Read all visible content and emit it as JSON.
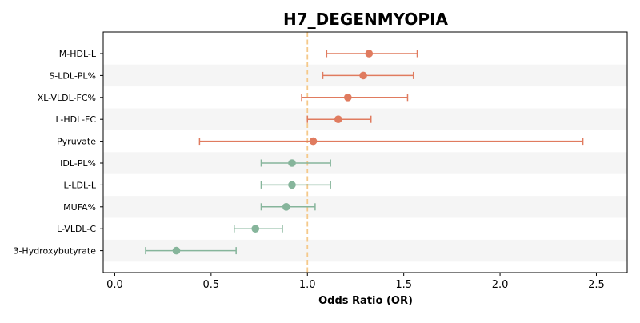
{
  "chart_data": {
    "type": "forest",
    "title": "H7_DEGENMYOPIA",
    "xlabel": "Odds Ratio (OR)",
    "ylabel": "",
    "xlim": [
      -0.06,
      2.66
    ],
    "xticks": [
      0.0,
      0.5,
      1.0,
      1.5,
      2.0,
      2.5
    ],
    "xtick_labels": [
      "0.0",
      "0.5",
      "1.0",
      "1.5",
      "2.0",
      "2.5"
    ],
    "reference_line": 1.0,
    "grid": false,
    "row_striping": true,
    "colors": {
      "positive": "#e07b5f",
      "negative": "#86b59b",
      "reference": "#f5c98a",
      "stripe": "#f5f5f5"
    },
    "rows": [
      {
        "label": "M-HDL-L",
        "or": 1.32,
        "lower": 1.1,
        "upper": 1.57
      },
      {
        "label": "S-LDL-PL%",
        "or": 1.29,
        "lower": 1.08,
        "upper": 1.55
      },
      {
        "label": "XL-VLDL-FC%",
        "or": 1.21,
        "lower": 0.97,
        "upper": 1.52
      },
      {
        "label": "L-HDL-FC",
        "or": 1.16,
        "lower": 1.0,
        "upper": 1.33
      },
      {
        "label": "Pyruvate",
        "or": 1.03,
        "lower": 0.44,
        "upper": 2.43
      },
      {
        "label": "IDL-PL%",
        "or": 0.92,
        "lower": 0.76,
        "upper": 1.12
      },
      {
        "label": "L-LDL-L",
        "or": 0.92,
        "lower": 0.76,
        "upper": 1.12
      },
      {
        "label": "MUFA%",
        "or": 0.89,
        "lower": 0.76,
        "upper": 1.04
      },
      {
        "label": "L-VLDL-C",
        "or": 0.73,
        "lower": 0.62,
        "upper": 0.87
      },
      {
        "label": "3-Hydroxybutyrate",
        "or": 0.32,
        "lower": 0.16,
        "upper": 0.63
      }
    ]
  }
}
